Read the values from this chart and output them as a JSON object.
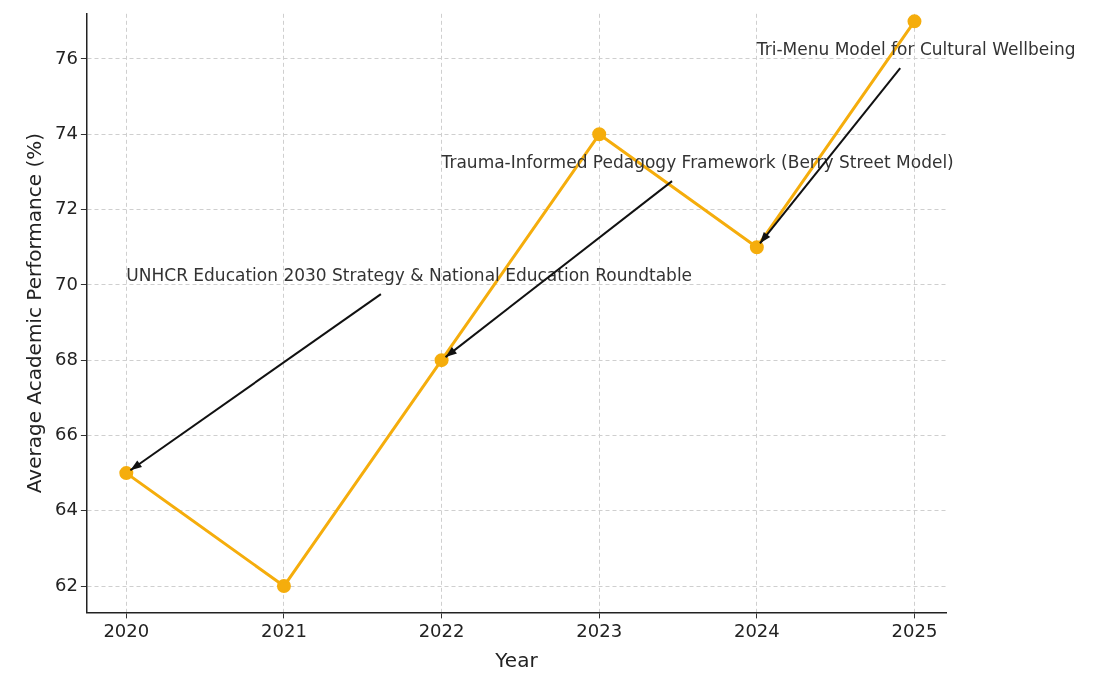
{
  "chart_data": {
    "type": "line",
    "xlabel": "Year",
    "ylabel": "Average Academic Performance (%)",
    "x": [
      2020,
      2021,
      2022,
      2023,
      2024,
      2025
    ],
    "series": [
      {
        "color": "#f5ad0c",
        "values": [
          65,
          62,
          68,
          74,
          71,
          77
        ]
      }
    ],
    "xlim": [
      2019.75,
      2025.2
    ],
    "xticks": [
      2020,
      2021,
      2022,
      2023,
      2024,
      2025
    ],
    "ylim": [
      61.3,
      77.2
    ],
    "yticks": [
      62,
      64,
      66,
      68,
      70,
      72,
      74,
      76
    ],
    "grid": true,
    "marker": "circle",
    "line_style": "solid",
    "legend": false,
    "annotations": [
      {
        "text": "UNHCR Education 2030 Strategy & National Education Roundtable",
        "x": 2020,
        "y": 65
      },
      {
        "text": "Trauma-Informed Pedagogy Framework (Berry Street Model)",
        "x": 2022,
        "y": 68
      },
      {
        "text": "Tri-Menu Model for Cultural Wellbeing",
        "x": 2024,
        "y": 71
      }
    ]
  }
}
